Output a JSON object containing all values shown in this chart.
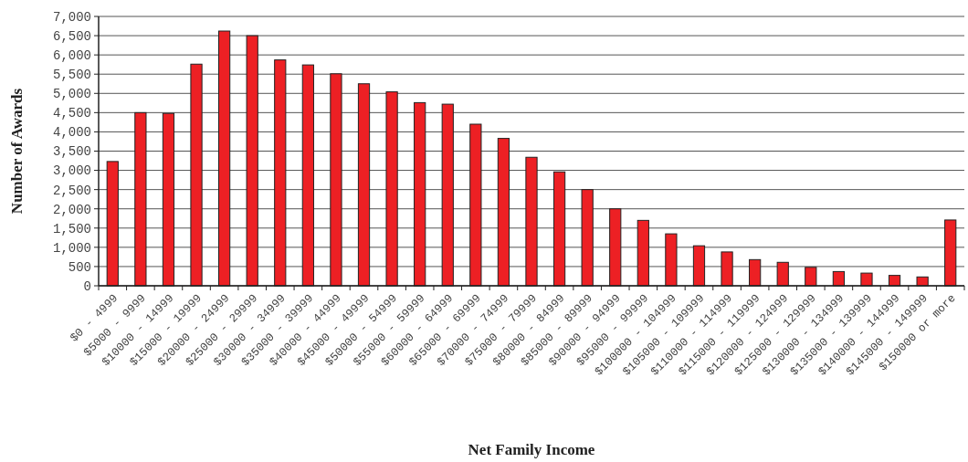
{
  "chart_data": {
    "type": "bar",
    "xlabel": "Net Family Income",
    "ylabel": "Number of Awards",
    "categories": [
      "$0 - 4999",
      "$5000 - 9999",
      "$10000 - 14999",
      "$15000 - 19999",
      "$20000 - 24999",
      "$25000 - 29999",
      "$30000 - 34999",
      "$35000 - 39999",
      "$40000 - 44999",
      "$45000 - 49999",
      "$50000 - 54999",
      "$55000 - 59999",
      "$60000 - 64999",
      "$65000 - 69999",
      "$70000 - 74999",
      "$75000 - 79999",
      "$80000 - 84999",
      "$85000 - 89999",
      "$90000 - 94999",
      "$95000 - 99999",
      "$100000 - 104999",
      "$105000 - 109999",
      "$110000 - 114999",
      "$115000 - 119999",
      "$120000 - 124999",
      "$125000 - 129999",
      "$130000 - 134999",
      "$135000 - 139999",
      "$140000 - 144999",
      "$145000 - 149999",
      "$150000 or more"
    ],
    "values": [
      3230,
      4500,
      4480,
      5760,
      6620,
      6500,
      5870,
      5740,
      5510,
      5250,
      5040,
      4760,
      4720,
      4200,
      3830,
      3340,
      2960,
      2500,
      2000,
      1700,
      1350,
      1040,
      880,
      680,
      610,
      480,
      370,
      330,
      270,
      230,
      1710
    ],
    "color": "#ed2024",
    "ylim": [
      0,
      7000
    ],
    "yticks": [
      {
        "value": 0,
        "label": "0"
      },
      {
        "value": 500,
        "label": "500"
      },
      {
        "value": 1000,
        "label": "1,000"
      },
      {
        "value": 1500,
        "label": "1,500"
      },
      {
        "value": 2000,
        "label": "2,000"
      },
      {
        "value": 2500,
        "label": "2,500"
      },
      {
        "value": 3000,
        "label": "3,000"
      },
      {
        "value": 3500,
        "label": "3,500"
      },
      {
        "value": 4000,
        "label": "4,000"
      },
      {
        "value": 4500,
        "label": "4,500"
      },
      {
        "value": 5000,
        "label": "5,000"
      },
      {
        "value": 5500,
        "label": "5,500"
      },
      {
        "value": 6000,
        "label": "6,000"
      },
      {
        "value": 6500,
        "label": "6,500"
      },
      {
        "value": 7000,
        "label": "7,000"
      }
    ],
    "grid": "y"
  }
}
